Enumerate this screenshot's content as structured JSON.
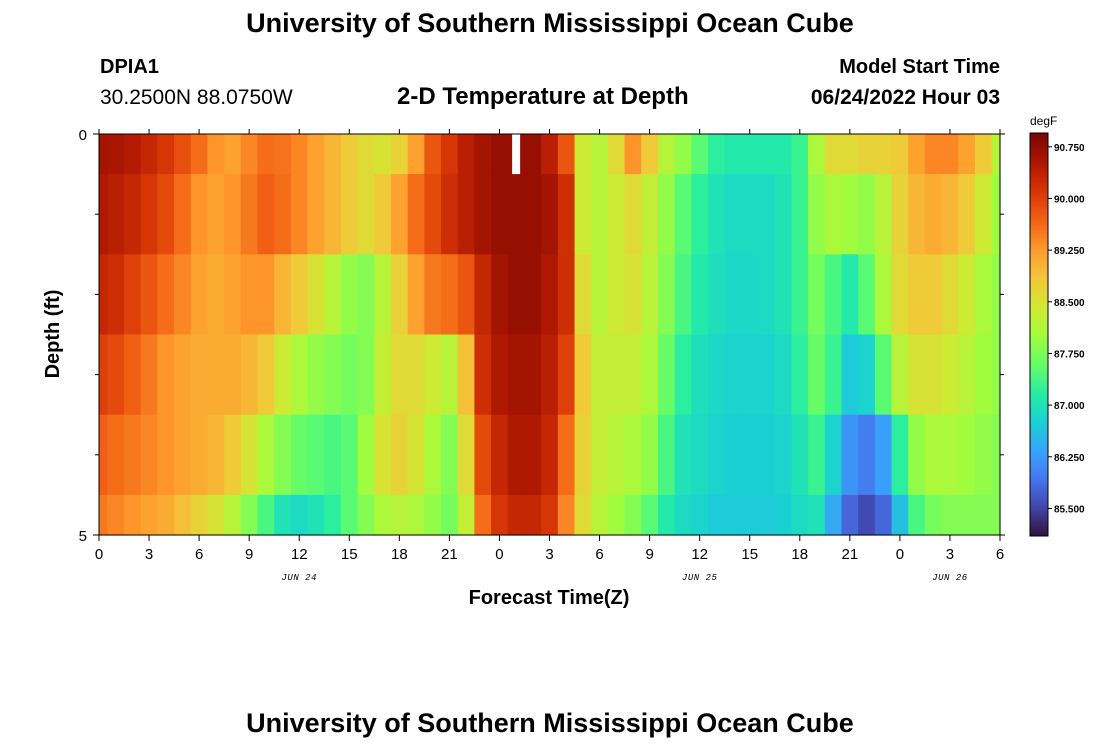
{
  "header": {
    "title": "University of Southern Mississippi Ocean Cube",
    "station_id": "DPIA1",
    "coordinates": "30.2500N  88.0750W",
    "subtitle": "2-D Temperature at Depth",
    "model_start_label": "Model Start Time",
    "model_start_value": "06/24/2022 Hour 03"
  },
  "footer": {
    "title": "University of Southern Mississippi Ocean Cube"
  },
  "chart_data": {
    "type": "heatmap",
    "title": "2-D Temperature at Depth",
    "xlabel": "Forecast Time(Z)",
    "ylabel": "Depth (ft)",
    "x_range_hours": [
      0,
      54
    ],
    "x_tick_hours": [
      0,
      3,
      6,
      9,
      12,
      15,
      18,
      21,
      24,
      27,
      30,
      33,
      36,
      39,
      42,
      45,
      48,
      51,
      54
    ],
    "x_tick_labels": [
      "0",
      "3",
      "6",
      "9",
      "12",
      "15",
      "18",
      "21",
      "0",
      "3",
      "6",
      "9",
      "12",
      "15",
      "18",
      "21",
      "0",
      "3",
      "6"
    ],
    "date_labels": [
      {
        "hour": 12,
        "label": "JUN 24"
      },
      {
        "hour": 36,
        "label": "JUN 25"
      },
      {
        "hour": 51,
        "label": "JUN 26"
      }
    ],
    "y_range_ft": [
      0,
      5
    ],
    "y_tick_labels": [
      {
        "value": 0,
        "label": "0"
      },
      {
        "value": 5,
        "label": "5"
      }
    ],
    "y_minor_ticks_ft": [
      1,
      2,
      3,
      4
    ],
    "depth_bands_ft": [
      [
        0,
        0.5
      ],
      [
        0.5,
        1.5
      ],
      [
        1.5,
        2.5
      ],
      [
        2.5,
        3.5
      ],
      [
        3.5,
        4.5
      ],
      [
        4.5,
        5
      ]
    ],
    "time_step_hours": 1,
    "values_degF": [
      [
        90.6,
        90.55,
        90.45,
        90.3,
        90.1,
        89.85,
        89.6,
        89.3,
        89.2,
        89.4,
        89.6,
        89.55,
        89.4,
        89.2,
        89.0,
        88.8,
        88.6,
        88.5,
        88.7,
        89.2,
        89.8,
        90.1,
        90.4,
        90.6,
        90.7,
        90.7,
        90.7,
        90.4,
        89.8,
        88.4,
        88.2,
        88.6,
        89.3,
        88.8,
        88.2,
        87.9,
        87.5,
        87.2,
        87.1,
        87.1,
        87.1,
        87.1,
        87.3,
        88.1,
        88.6,
        88.6,
        88.7,
        88.7,
        88.8,
        89.2,
        89.4,
        89.4,
        89.2,
        88.8,
        88.2
      ],
      [
        90.5,
        90.4,
        90.3,
        90.1,
        89.9,
        89.6,
        89.3,
        89.2,
        89.3,
        89.5,
        89.7,
        89.6,
        89.4,
        89.2,
        89.0,
        88.8,
        88.6,
        88.8,
        89.2,
        89.6,
        89.9,
        90.2,
        90.4,
        90.6,
        90.7,
        90.7,
        90.7,
        90.6,
        90.2,
        88.4,
        88.2,
        88.4,
        88.6,
        88.3,
        87.9,
        87.5,
        87.2,
        87.0,
        86.9,
        86.9,
        86.9,
        87.0,
        87.3,
        87.9,
        88.1,
        88.0,
        87.9,
        88.2,
        88.7,
        89.0,
        89.1,
        89.0,
        88.8,
        88.4,
        88.0
      ],
      [
        90.3,
        90.2,
        90.0,
        89.8,
        89.6,
        89.4,
        89.2,
        89.1,
        89.2,
        89.3,
        89.3,
        89.0,
        88.8,
        88.5,
        88.2,
        87.9,
        87.8,
        88.2,
        88.7,
        89.2,
        89.5,
        89.6,
        89.8,
        90.3,
        90.6,
        90.7,
        90.7,
        90.5,
        90.2,
        88.6,
        88.2,
        88.4,
        88.5,
        88.2,
        87.8,
        87.4,
        87.1,
        86.95,
        86.85,
        86.85,
        86.9,
        87.0,
        87.3,
        87.7,
        87.4,
        87.1,
        87.5,
        88.1,
        88.6,
        88.8,
        88.8,
        88.6,
        88.4,
        88.1,
        87.9
      ],
      [
        90.0,
        89.9,
        89.7,
        89.5,
        89.3,
        89.2,
        89.1,
        89.1,
        89.1,
        89.0,
        88.8,
        88.4,
        88.1,
        87.9,
        87.8,
        87.7,
        87.8,
        88.3,
        88.6,
        88.6,
        88.4,
        88.2,
        88.9,
        90.2,
        90.5,
        90.6,
        90.6,
        90.4,
        90.0,
        88.8,
        88.3,
        88.3,
        88.3,
        88.1,
        87.6,
        87.2,
        86.95,
        86.85,
        86.8,
        86.8,
        86.8,
        86.9,
        87.2,
        87.6,
        87.3,
        86.7,
        86.8,
        87.5,
        88.2,
        88.5,
        88.5,
        88.4,
        88.2,
        88.0,
        87.9
      ],
      [
        89.7,
        89.6,
        89.5,
        89.4,
        89.3,
        89.2,
        89.1,
        89.0,
        88.8,
        88.5,
        88.1,
        87.8,
        87.6,
        87.5,
        87.4,
        87.5,
        88.0,
        88.5,
        88.7,
        88.5,
        88.1,
        87.8,
        88.6,
        89.9,
        90.3,
        90.5,
        90.5,
        90.3,
        89.6,
        88.7,
        88.3,
        88.2,
        88.1,
        87.9,
        87.4,
        87.0,
        86.9,
        86.8,
        86.75,
        86.75,
        86.75,
        86.8,
        87.0,
        87.3,
        86.8,
        86.2,
        86.0,
        86.3,
        87.2,
        87.9,
        88.1,
        88.1,
        88.0,
        87.9,
        87.8
      ],
      [
        89.5,
        89.4,
        89.3,
        89.2,
        89.1,
        88.9,
        88.7,
        88.5,
        88.2,
        87.8,
        87.4,
        87.0,
        86.9,
        87.0,
        87.2,
        87.5,
        87.8,
        88.1,
        88.2,
        88.1,
        87.9,
        87.7,
        88.3,
        89.6,
        90.1,
        90.3,
        90.3,
        90.1,
        89.4,
        88.6,
        88.2,
        88.0,
        87.8,
        87.5,
        87.1,
        86.9,
        86.8,
        86.7,
        86.7,
        86.7,
        86.7,
        86.75,
        86.9,
        87.0,
        86.4,
        85.8,
        85.55,
        85.8,
        86.6,
        87.4,
        87.7,
        87.8,
        87.8,
        87.8,
        87.8
      ]
    ],
    "gap_marker_hour": 25,
    "colorbar": {
      "unit": "degF",
      "min": 85.1,
      "max": 90.95,
      "tick_values": [
        85.5,
        86.25,
        87.0,
        87.75,
        88.5,
        89.25,
        90.0,
        90.75
      ],
      "tick_labels": [
        "85.500",
        "86.250",
        "87.000",
        "87.750",
        "88.500",
        "89.250",
        "90.000",
        "90.750"
      ]
    },
    "colors": {
      "stops": [
        "#30123b",
        "#4145ab",
        "#4675ed",
        "#39a2fc",
        "#1bcfd4",
        "#24eca6",
        "#61fc6c",
        "#a4fc3b",
        "#d1e834",
        "#f3c63a",
        "#fe9b2d",
        "#f36315",
        "#d93806",
        "#b11901",
        "#7a0402"
      ],
      "stop_positions": [
        0,
        0.07,
        0.14,
        0.21,
        0.28,
        0.35,
        0.42,
        0.5,
        0.57,
        0.64,
        0.71,
        0.78,
        0.85,
        0.92,
        1.0
      ]
    }
  }
}
